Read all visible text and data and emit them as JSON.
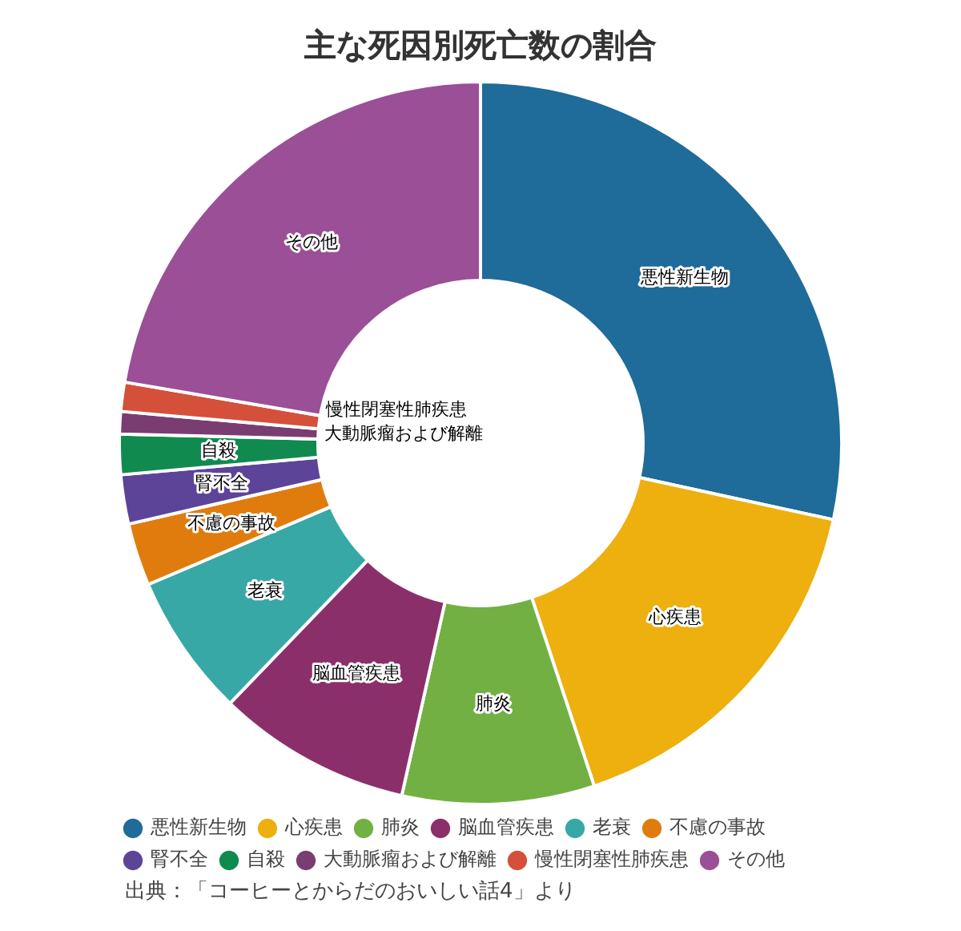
{
  "chart_data": {
    "type": "donut",
    "title": "主な死因別死亡数の割合",
    "categories": [
      "悪性新生物",
      "心疾患",
      "肺炎",
      "脳血管疾患",
      "老衰",
      "不慮の事故",
      "腎不全",
      "自殺",
      "大動脈瘤および解離",
      "慢性閉塞性肺疾患",
      "その他"
    ],
    "values": [
      28.4,
      16.5,
      8.6,
      8.7,
      6.4,
      2.8,
      2.2,
      1.8,
      1.0,
      1.3,
      22.3
    ],
    "colors": [
      "#1f6b99",
      "#edb00f",
      "#72b043",
      "#8b2f6b",
      "#38a8a6",
      "#e07c0e",
      "#5c4499",
      "#118a50",
      "#7a3d72",
      "#d4503a",
      "#9b4f96"
    ],
    "legend": "bottom",
    "annotations": [
      "出典：「コーヒーとからだのおいしい話4」より"
    ]
  }
}
